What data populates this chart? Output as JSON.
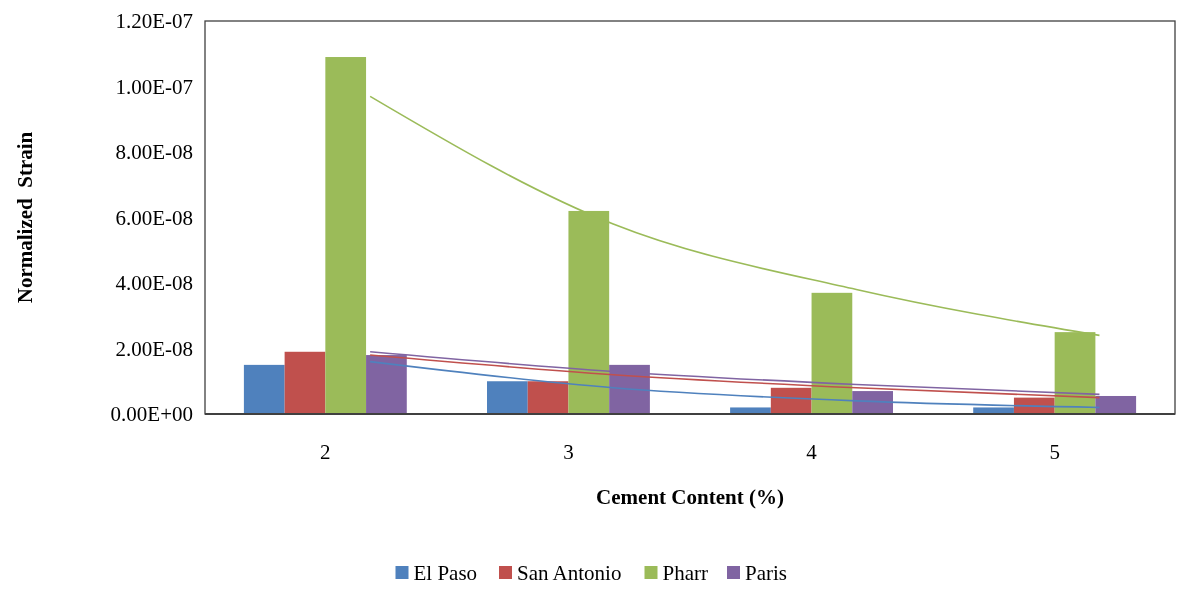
{
  "chart_data": {
    "type": "bar",
    "xlabel": "Cement Content (%)",
    "ylabel": "Normalized  Strain",
    "categories": [
      "2",
      "3",
      "4",
      "5"
    ],
    "series": [
      {
        "name": "El Paso",
        "color": "#4f81bd",
        "values": [
          1.5e-08,
          1e-08,
          2e-09,
          2e-09
        ]
      },
      {
        "name": "San Antonio",
        "color": "#c0504d",
        "values": [
          1.9e-08,
          1e-08,
          8e-09,
          5e-09
        ]
      },
      {
        "name": "Pharr",
        "color": "#9bbb59",
        "values": [
          1.09e-07,
          6.2e-08,
          3.7e-08,
          2.5e-08
        ]
      },
      {
        "name": "Paris",
        "color": "#8064a2",
        "values": [
          1.8e-08,
          1.5e-08,
          7e-09,
          5.5e-09
        ]
      },
      {
        "type": "line",
        "color": "#4f81bd",
        "x": [
          "2",
          "3",
          "4",
          "5"
        ],
        "values": [
          1.6e-08,
          8e-09,
          4e-09,
          2e-09
        ]
      },
      {
        "type": "line",
        "color": "#c0504d",
        "x": [
          "2",
          "3",
          "4",
          "5"
        ],
        "values": [
          1.8e-08,
          1.2e-08,
          8e-09,
          5e-09
        ]
      },
      {
        "type": "line",
        "color": "#9bbb59",
        "x": [
          "2",
          "3",
          "4",
          "5"
        ],
        "values": [
          9.7e-08,
          5.8e-08,
          3.8e-08,
          2.4e-08
        ]
      },
      {
        "type": "line",
        "color": "#8064a2",
        "x": [
          "2",
          "3",
          "4",
          "5"
        ],
        "values": [
          1.9e-08,
          1.3e-08,
          9e-09,
          6e-09
        ]
      }
    ],
    "ylim": [
      0,
      1.2e-07
    ],
    "yticks": [
      {
        "value": 0,
        "label": "0.00E+00"
      },
      {
        "value": 2e-08,
        "label": "2.00E-08"
      },
      {
        "value": 4e-08,
        "label": "4.00E-08"
      },
      {
        "value": 6e-08,
        "label": "6.00E-08"
      },
      {
        "value": 8e-08,
        "label": "8.00E-08"
      },
      {
        "value": 1e-07,
        "label": "1.00E-07"
      },
      {
        "value": 1.2e-07,
        "label": "1.20E-07"
      }
    ],
    "legend": "bottom",
    "grid": false
  }
}
